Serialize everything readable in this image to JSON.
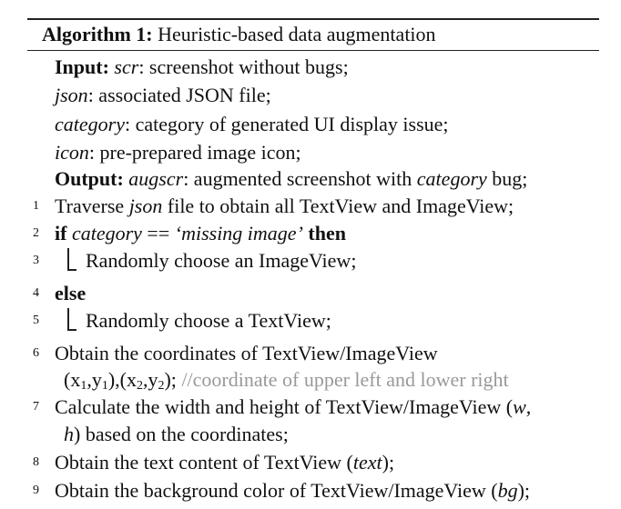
{
  "algorithm": {
    "label": "Algorithm 1:",
    "title": "Heuristic-based data augmentation"
  },
  "io": {
    "input_label": "Input:",
    "scr_var": "scr",
    "scr_desc": ": screenshot without bugs;",
    "json_var": "json",
    "json_desc": ": associated JSON file;",
    "category_var": "category",
    "category_desc": ": category of generated UI display issue;",
    "icon_var": "icon",
    "icon_desc": ": pre-prepared image icon;",
    "output_label": "Output:",
    "augscr_var": "augscr",
    "augscr_desc_a": ": augmented screenshot with ",
    "augscr_category": "category",
    "augscr_desc_b": " bug;"
  },
  "steps": {
    "s1": {
      "num": "1",
      "a": "Traverse ",
      "json": "json",
      "b": " file to obtain all TextView and ImageView;"
    },
    "s2": {
      "num": "2",
      "if": "if",
      "cond_var": "category",
      "cond_op": " == ",
      "cond_val": "‘missing image’",
      "then": "then"
    },
    "s3": {
      "num": "3",
      "text": "Randomly choose an ImageView;"
    },
    "s4": {
      "num": "4",
      "else": "else"
    },
    "s5": {
      "num": "5",
      "text": "Randomly choose a TextView;"
    },
    "s6": {
      "num": "6",
      "text": "Obtain the coordinates of TextView/ImageView",
      "coord_a": "(x",
      "coord_1": "1",
      "coord_b": ",y",
      "coord_c": "1",
      "coord_d": "),(x",
      "coord_2": "2",
      "coord_e": ",y",
      "coord_f": "2",
      "coord_g": "); ",
      "comment": "//coordinate of upper left and lower right"
    },
    "s7": {
      "num": "7",
      "a": "Calculate the width and height of TextView/ImageView (",
      "w": "w",
      "b": ",",
      "cont_a": "",
      "h": "h",
      "cont_b": ") based on the coordinates;"
    },
    "s8": {
      "num": "8",
      "a": "Obtain the text content of TextView (",
      "text": "text",
      "b": ");"
    },
    "s9": {
      "num": "9",
      "a": "Obtain the background color of TextView/ImageView (",
      "bg": "bg",
      "b": ");"
    }
  }
}
